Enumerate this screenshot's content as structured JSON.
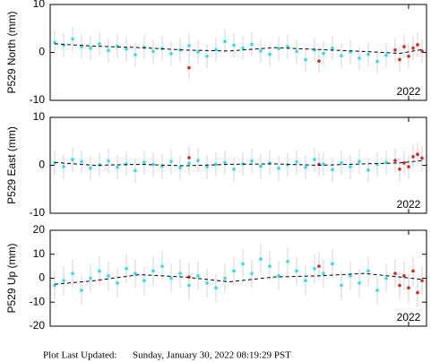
{
  "chart_data": [
    {
      "type": "scatter",
      "ylabel": "P529 North (mm)",
      "xlim": [
        2014,
        2022.4
      ],
      "xticks": [
        2022
      ],
      "ylim": [
        -10,
        10
      ],
      "yticks": [
        -10,
        0,
        10
      ],
      "error": 2.5,
      "error_color": "#c8c8c8",
      "series": [
        {
          "color": "#22e0f0",
          "x": [
            2014.1,
            2014.3,
            2014.5,
            2014.7,
            2014.9,
            2015.1,
            2015.3,
            2015.5,
            2015.7,
            2015.9,
            2016.1,
            2016.3,
            2016.5,
            2016.7,
            2016.9,
            2017.1,
            2017.3,
            2017.5,
            2017.7,
            2017.9,
            2018.1,
            2018.3,
            2018.5,
            2018.7,
            2018.9,
            2019.1,
            2019.3,
            2019.5,
            2019.7,
            2019.9,
            2020.1,
            2020.3,
            2020.5,
            2020.7,
            2020.9,
            2021.1,
            2021.3,
            2021.5
          ],
          "values": [
            2.1,
            1.5,
            2.8,
            1.2,
            0.9,
            1.8,
            0.4,
            1.3,
            0.7,
            -0.5,
            1.1,
            0.2,
            0.8,
            -0.3,
            0.5,
            1.4,
            0.1,
            -0.8,
            0.6,
            2.3,
            1.5,
            0.9,
            1.7,
            0.3,
            -0.4,
            0.8,
            1.2,
            0.2,
            -1.5,
            0.5,
            -0.2,
            0.9,
            -0.7,
            0.1,
            -1.2,
            -0.4,
            -1.9,
            -0.6
          ]
        },
        {
          "color": "#e02020",
          "x": [
            2017.1,
            2020.0,
            2021.7,
            2021.8,
            2021.9,
            2022.0,
            2022.1,
            2022.2,
            2022.3
          ],
          "values": [
            -3.2,
            -1.8,
            0.5,
            -1.5,
            1.2,
            -0.8,
            0.9,
            1.6,
            0.3
          ]
        }
      ],
      "trend": {
        "color": "#000000",
        "x": [
          2014.1,
          2015,
          2016,
          2017,
          2018,
          2019,
          2020,
          2021,
          2021.8,
          2022.3
        ],
        "values": [
          1.8,
          1.3,
          1.0,
          0.5,
          0.3,
          1.0,
          0.6,
          0.2,
          -0.2,
          0.6
        ]
      }
    },
    {
      "type": "scatter",
      "ylabel": "P529 East (mm)",
      "xlim": [
        2014,
        2022.4
      ],
      "xticks": [
        2022
      ],
      "ylim": [
        -10,
        10
      ],
      "yticks": [
        -10,
        0,
        10
      ],
      "error": 2.5,
      "error_color": "#c8c8c8",
      "series": [
        {
          "color": "#22e0f0",
          "x": [
            2014.1,
            2014.3,
            2014.5,
            2014.7,
            2014.9,
            2015.1,
            2015.3,
            2015.5,
            2015.7,
            2015.9,
            2016.1,
            2016.3,
            2016.5,
            2016.7,
            2016.9,
            2017.1,
            2017.3,
            2017.5,
            2017.7,
            2017.9,
            2018.1,
            2018.3,
            2018.5,
            2018.7,
            2018.9,
            2019.1,
            2019.3,
            2019.5,
            2019.7,
            2019.9,
            2020.1,
            2020.3,
            2020.5,
            2020.7,
            2020.9,
            2021.1,
            2021.3,
            2021.5
          ],
          "values": [
            0.5,
            -0.3,
            1.2,
            0.8,
            -0.6,
            0.1,
            0.9,
            -0.4,
            0.3,
            -1.1,
            0.6,
            0.2,
            -0.2,
            0.8,
            -0.5,
            0.4,
            1.0,
            -0.3,
            0.2,
            0.6,
            -0.8,
            0.3,
            0.9,
            -0.2,
            0.5,
            -0.6,
            0.1,
            0.7,
            -0.4,
            1.2,
            0.3,
            -0.9,
            0.5,
            -0.3,
            0.8,
            -1.0,
            0.2,
            0.6
          ]
        },
        {
          "color": "#e02020",
          "x": [
            2017.1,
            2020.0,
            2021.7,
            2021.8,
            2021.9,
            2022.0,
            2022.1,
            2022.2,
            2022.3
          ],
          "values": [
            1.6,
            0.2,
            1.0,
            -0.8,
            0.5,
            -0.3,
            1.8,
            2.3,
            1.5
          ]
        }
      ],
      "trend": {
        "color": "#000000",
        "x": [
          2014.1,
          2015,
          2016,
          2017,
          2018,
          2019,
          2020,
          2021,
          2021.8,
          2022.3
        ],
        "values": [
          0.6,
          0.0,
          0.2,
          -0.1,
          0.2,
          0.3,
          0.0,
          0.3,
          0.5,
          1.0
        ]
      }
    },
    {
      "type": "scatter",
      "ylabel": "P529 Up (mm)",
      "xlim": [
        2014,
        2022.4
      ],
      "xticks": [
        2022
      ],
      "ylim": [
        -20,
        20
      ],
      "yticks": [
        -20,
        -10,
        0,
        10,
        20
      ],
      "error": 6,
      "error_color": "#c8c8c8",
      "series": [
        {
          "color": "#22e0f0",
          "x": [
            2014.1,
            2014.3,
            2014.5,
            2014.7,
            2014.9,
            2015.1,
            2015.3,
            2015.5,
            2015.7,
            2015.9,
            2016.1,
            2016.3,
            2016.5,
            2016.7,
            2016.9,
            2017.1,
            2017.3,
            2017.5,
            2017.7,
            2017.9,
            2018.1,
            2018.3,
            2018.5,
            2018.7,
            2018.9,
            2019.1,
            2019.3,
            2019.5,
            2019.7,
            2019.9,
            2020.1,
            2020.3,
            2020.5,
            2020.7,
            2020.9,
            2021.1,
            2021.3,
            2021.5
          ],
          "values": [
            -3,
            -1,
            2,
            -5,
            0,
            3,
            1,
            -2,
            4,
            2,
            -1,
            3,
            5,
            0,
            2,
            -3,
            1,
            -2,
            -4,
            0,
            3,
            6,
            2,
            8,
            5,
            1,
            7,
            3,
            -1,
            4,
            2,
            6,
            -3,
            1,
            -2,
            3,
            -5,
            0
          ]
        },
        {
          "color": "#e02020",
          "x": [
            2017.1,
            2020.0,
            2021.7,
            2021.8,
            2021.9,
            2022.0,
            2022.1,
            2022.2,
            2022.3
          ],
          "values": [
            0.5,
            5,
            2,
            -3,
            1,
            -4,
            3,
            -6,
            -1
          ]
        }
      ],
      "trend": {
        "color": "#000000",
        "x": [
          2014.1,
          2015,
          2016,
          2017,
          2018,
          2019,
          2020,
          2021,
          2021.8,
          2022.3
        ],
        "values": [
          -2.5,
          -1,
          1.5,
          0.5,
          -1.5,
          0.5,
          1,
          2,
          0.5,
          -0.5
        ]
      }
    }
  ],
  "footer": {
    "label": "Plot Last Updated:",
    "value": "Sunday, January 30, 2022 08:19:29 PST"
  }
}
